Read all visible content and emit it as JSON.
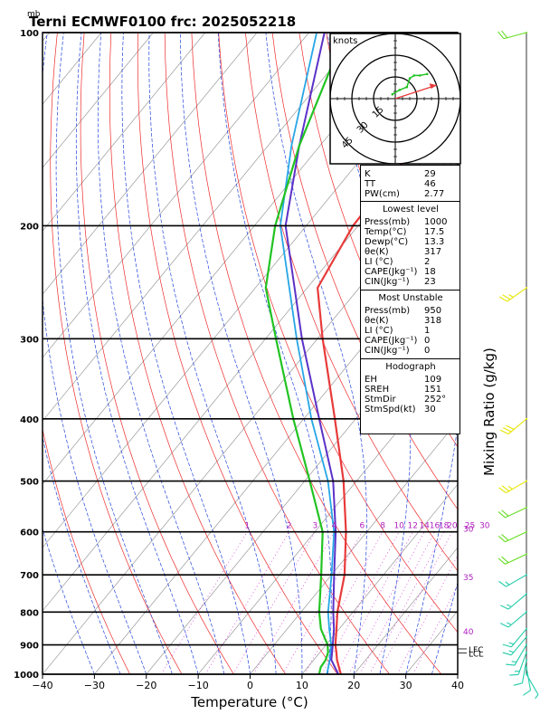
{
  "title": "Terni ECMWF0100  frc: 2025052218",
  "pressure_unit": "mb",
  "x_axis_label": "Temperature (°C)",
  "right_axis_label": "Mixing Ratio (g/kg)",
  "x_ticks": [
    "−40",
    "−30",
    "−20",
    "−10",
    "0",
    "10",
    "20",
    "30",
    "40"
  ],
  "x_tick_values": [
    -40,
    -30,
    -20,
    -10,
    0,
    10,
    20,
    30,
    40
  ],
  "p_ticks": [
    "100",
    "200",
    "300",
    "400",
    "500",
    "600",
    "700",
    "800",
    "900",
    "1000"
  ],
  "p_tick_values": [
    100,
    200,
    300,
    400,
    500,
    600,
    700,
    800,
    900,
    1000
  ],
  "mixing_ratio_labels": [
    "1",
    "2",
    "3",
    "4",
    "6",
    "8",
    "10",
    "12",
    "14",
    "16",
    "18",
    "20",
    "25",
    "30"
  ],
  "mixing_ratio_values": [
    1,
    2,
    3,
    4,
    6,
    8,
    10,
    12,
    14,
    16,
    18,
    20,
    25,
    30
  ],
  "theta_e_labels": [
    "30",
    "35",
    "40"
  ],
  "lcl_labels": [
    "LFC",
    "LCL"
  ],
  "hodograph": {
    "unit_label": "knots",
    "ring_labels": [
      "15",
      "30",
      "45"
    ]
  },
  "indices_box": {
    "top": [
      {
        "label": "K",
        "value": "29"
      },
      {
        "label": "TT",
        "value": "46"
      },
      {
        "label": "PW(cm)",
        "value": "2.77"
      }
    ],
    "lowest_level": {
      "title": "Lowest level",
      "rows": [
        {
          "label": "Press(mb)",
          "value": "1000"
        },
        {
          "label": "Temp(°C)",
          "value": "17.5"
        },
        {
          "label": "Dewp(°C)",
          "value": "13.3"
        },
        {
          "label": "θe(K)",
          "value": "317"
        },
        {
          "label": "LI (°C)",
          "value": "2"
        },
        {
          "label": "CAPE(Jkg⁻¹)",
          "value": "18"
        },
        {
          "label": "CIN(Jkg⁻¹)",
          "value": "23"
        }
      ]
    },
    "most_unstable": {
      "title": "Most Unstable",
      "rows": [
        {
          "label": "Press(mb)",
          "value": "950"
        },
        {
          "label": "θe(K)",
          "value": "318"
        },
        {
          "label": "LI (°C)",
          "value": "1"
        },
        {
          "label": "CAPE(Jkg⁻¹)",
          "value": "0"
        },
        {
          "label": "CIN(Jkg⁻¹)",
          "value": "0"
        }
      ]
    },
    "hodograph_box": {
      "title": "Hodograph",
      "rows": [
        {
          "label": "EH",
          "value": "109"
        },
        {
          "label": "SREH",
          "value": "151"
        },
        {
          "label": "StmDir",
          "value": "252°"
        },
        {
          "label": "StmSpd(kt)",
          "value": "30"
        }
      ]
    }
  },
  "colors": {
    "temperature": "#e83a3a",
    "dewpoint": "#22c322",
    "parcel": "#5b32c8",
    "wetbulb": "#27a6e6",
    "isotherm": "#888888",
    "dry_adiabat": "#ee2b2b",
    "moist_adiabat": "#2244dd",
    "mixing_ratio": "#d42ad4",
    "theta_label": "#b020c0"
  },
  "chart_data": {
    "type": "line",
    "title": "Terni ECMWF0100  frc: 2025052218",
    "xlabel": "Temperature (°C)",
    "ylabel": "mb",
    "xlim": [
      -40,
      40
    ],
    "ylim": [
      1000,
      100
    ],
    "y_scale": "log",
    "skew": "skew-T",
    "series": [
      {
        "name": "temperature",
        "points": [
          [
            1000,
            17.5
          ],
          [
            975,
            16.0
          ],
          [
            950,
            14.5
          ],
          [
            925,
            13.2
          ],
          [
            900,
            11.8
          ],
          [
            850,
            9.5
          ],
          [
            800,
            7.0
          ],
          [
            700,
            2.5
          ],
          [
            600,
            -4.0
          ],
          [
            500,
            -12.5
          ],
          [
            400,
            -24.0
          ],
          [
            300,
            -39.0
          ],
          [
            250,
            -48.0
          ],
          [
            200,
            -51.0
          ],
          [
            150,
            -51.5
          ],
          [
            100,
            -54.0
          ]
        ]
      },
      {
        "name": "dewpoint",
        "points": [
          [
            1000,
            13.3
          ],
          [
            975,
            12.5
          ],
          [
            950,
            12.3
          ],
          [
            925,
            11.6
          ],
          [
            900,
            10.3
          ],
          [
            850,
            6.5
          ],
          [
            800,
            3.5
          ],
          [
            700,
            -2.0
          ],
          [
            600,
            -8.5
          ],
          [
            500,
            -19.0
          ],
          [
            400,
            -32.0
          ],
          [
            300,
            -48.0
          ],
          [
            250,
            -58.0
          ],
          [
            200,
            -66.0
          ],
          [
            150,
            -74.0
          ],
          [
            100,
            -83.0
          ]
        ]
      },
      {
        "name": "parcel",
        "points": [
          [
            1000,
            17.0
          ],
          [
            950,
            13.4
          ],
          [
            900,
            11.3
          ],
          [
            850,
            9.0
          ],
          [
            800,
            6.2
          ],
          [
            700,
            0.5
          ],
          [
            600,
            -6.0
          ],
          [
            500,
            -14.5
          ],
          [
            400,
            -27.0
          ],
          [
            300,
            -43.0
          ],
          [
            200,
            -64.0
          ],
          [
            150,
            -74.0
          ],
          [
            100,
            -87.0
          ]
        ]
      },
      {
        "name": "wetbulb",
        "points": [
          [
            1000,
            14.8
          ],
          [
            950,
            13.1
          ],
          [
            900,
            11.0
          ],
          [
            850,
            8.1
          ],
          [
            800,
            5.2
          ],
          [
            700,
            0.0
          ],
          [
            600,
            -6.3
          ],
          [
            500,
            -15.5
          ],
          [
            400,
            -28.5
          ],
          [
            300,
            -44.0
          ],
          [
            200,
            -65.0
          ],
          [
            150,
            -75.5
          ],
          [
            100,
            -88.5
          ]
        ]
      }
    ],
    "hodograph_points_kt": [
      [
        -2,
        3
      ],
      [
        3,
        6
      ],
      [
        8,
        8
      ],
      [
        10,
        14
      ],
      [
        13,
        16
      ],
      [
        17,
        16
      ],
      [
        22,
        17
      ]
    ],
    "storm_motion": {
      "dir_deg": 252,
      "speed_kt": 30
    },
    "wind_barbs": [
      {
        "p": 100,
        "dir": 255,
        "spd": 20
      },
      {
        "p": 250,
        "dir": 235,
        "spd": 25
      },
      {
        "p": 400,
        "dir": 230,
        "spd": 30
      },
      {
        "p": 500,
        "dir": 240,
        "spd": 25
      },
      {
        "p": 550,
        "dir": 245,
        "spd": 20
      },
      {
        "p": 600,
        "dir": 245,
        "spd": 20
      },
      {
        "p": 650,
        "dir": 245,
        "spd": 20
      },
      {
        "p": 700,
        "dir": 240,
        "spd": 15
      },
      {
        "p": 750,
        "dir": 230,
        "spd": 15
      },
      {
        "p": 800,
        "dir": 230,
        "spd": 15
      },
      {
        "p": 850,
        "dir": 220,
        "spd": 15
      },
      {
        "p": 875,
        "dir": 220,
        "spd": 15
      },
      {
        "p": 900,
        "dir": 210,
        "spd": 15
      },
      {
        "p": 925,
        "dir": 200,
        "spd": 15
      },
      {
        "p": 950,
        "dir": 190,
        "spd": 10
      },
      {
        "p": 975,
        "dir": 170,
        "spd": 10
      },
      {
        "p": 1000,
        "dir": 150,
        "spd": 5
      }
    ]
  }
}
